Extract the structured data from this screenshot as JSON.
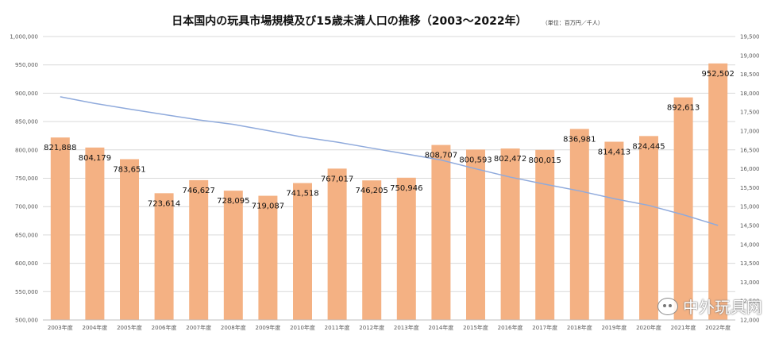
{
  "chart_data": {
    "type": "bar",
    "title": "日本国内の玩具市場規模及び15歳未満人口の推移（2003〜2022年）",
    "unit_note": "（単位：百万円／千人）",
    "categories": [
      "2003年度",
      "2004年度",
      "2005年度",
      "2006年度",
      "2007年度",
      "2008年度",
      "2009年度",
      "2010年度",
      "2011年度",
      "2012年度",
      "2013年度",
      "2014年度",
      "2015年度",
      "2016年度",
      "2017年度",
      "2018年度",
      "2019年度",
      "2020年度",
      "2021年度",
      "2022年度"
    ],
    "series": [
      {
        "type": "bar",
        "axis": "left",
        "color": "#f4b183",
        "values": [
          821888,
          804179,
          783651,
          723614,
          746627,
          728095,
          719087,
          741518,
          767017,
          746205,
          750946,
          808707,
          800593,
          802472,
          800015,
          836981,
          814413,
          824445,
          892613,
          952502
        ],
        "labels": [
          "821,888",
          "804,179",
          "783,651",
          "723,614",
          "746,627",
          "728,095",
          "719,087",
          "741,518",
          "767,017",
          "746,205",
          "750,946",
          "808,707",
          "800,593",
          "802,472",
          "800,015",
          "836,981",
          "814,413",
          "824,445",
          "892,613",
          "952,502"
        ]
      },
      {
        "type": "line",
        "axis": "right",
        "color": "#8faadc",
        "values": [
          17905,
          17730,
          17580,
          17435,
          17293,
          17176,
          17011,
          16839,
          16705,
          16547,
          16390,
          16233,
          16001,
          15780,
          15592,
          15415,
          15210,
          15032,
          14784,
          14503
        ]
      }
    ],
    "y_left": {
      "min": 500000,
      "max": 1000000,
      "ticks": [
        "500,000",
        "550,000",
        "600,000",
        "650,000",
        "700,000",
        "750,000",
        "800,000",
        "850,000",
        "900,000",
        "950,000",
        "1,000,000"
      ]
    },
    "y_right": {
      "min": 12000,
      "max": 19500,
      "ticks": [
        "12,000",
        "12,500",
        "13,000",
        "13,500",
        "14,000",
        "14,500",
        "15,000",
        "15,500",
        "16,000",
        "16,500",
        "17,000",
        "17,500",
        "18,000",
        "18,500",
        "19,000",
        "19,500"
      ]
    },
    "grid": true
  },
  "watermark": {
    "text": "中外玩具网",
    "icon": "wechat-icon"
  }
}
